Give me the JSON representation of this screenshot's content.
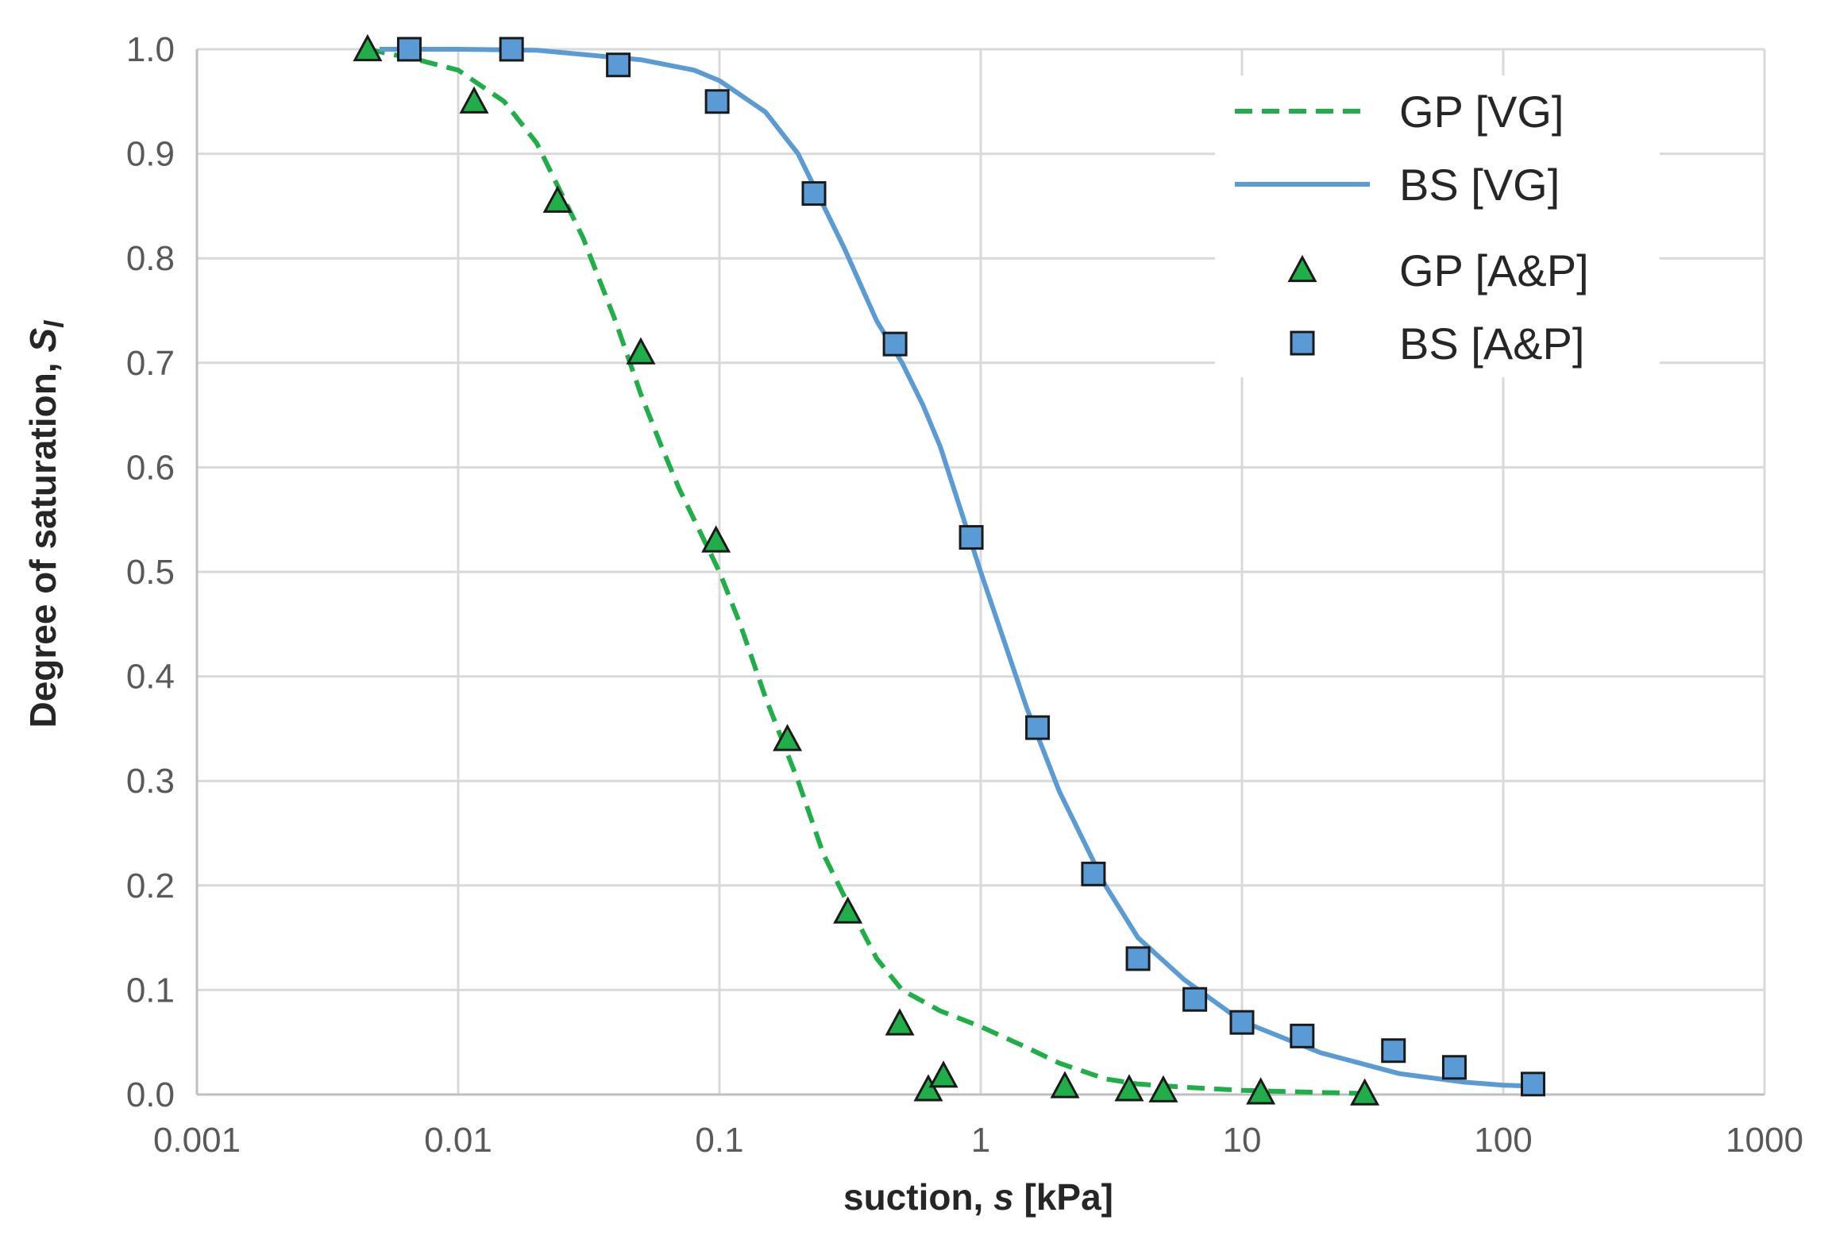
{
  "chart_data": {
    "type": "scatter",
    "xlabel": {
      "text": "suction, ",
      "var": "s",
      "unit": " [kPa]"
    },
    "ylabel": {
      "text": "Degree of saturation, ",
      "var": "S",
      "sub": "l"
    },
    "x_scale": "log",
    "xlim": [
      0.001,
      1000
    ],
    "ylim": [
      0,
      1.0
    ],
    "x_ticks": [
      0.001,
      0.01,
      0.1,
      1,
      10,
      100,
      1000
    ],
    "x_tick_labels": [
      "0.001",
      "0.01",
      "0.1",
      "1",
      "10",
      "100",
      "1000"
    ],
    "y_ticks": [
      0,
      0.1,
      0.2,
      0.3,
      0.4,
      0.5,
      0.6,
      0.7,
      0.8,
      0.9,
      1.0
    ],
    "y_tick_labels": [
      "0.0",
      "0.1",
      "0.2",
      "0.3",
      "0.4",
      "0.5",
      "0.6",
      "0.7",
      "0.8",
      "0.9",
      "1.0"
    ],
    "grid": true,
    "legend_position": "top-right",
    "series": [
      {
        "name": "GP [VG]",
        "kind": "line",
        "style": "dashed",
        "color": "#1fae48",
        "x": [
          0.0045,
          0.007,
          0.01,
          0.015,
          0.02,
          0.03,
          0.04,
          0.05,
          0.06,
          0.07,
          0.08,
          0.1,
          0.12,
          0.15,
          0.2,
          0.25,
          0.3,
          0.4,
          0.5,
          0.7,
          1,
          1.5,
          2,
          3,
          4,
          6,
          10,
          20,
          30
        ],
        "y": [
          1.0,
          0.99,
          0.98,
          0.95,
          0.91,
          0.82,
          0.74,
          0.67,
          0.62,
          0.58,
          0.55,
          0.5,
          0.45,
          0.38,
          0.3,
          0.23,
          0.19,
          0.13,
          0.1,
          0.08,
          0.065,
          0.045,
          0.03,
          0.015,
          0.01,
          0.007,
          0.004,
          0.002,
          0.001
        ]
      },
      {
        "name": "BS [VG]",
        "kind": "line",
        "style": "solid",
        "color": "#5b9bd5",
        "x": [
          0.005,
          0.01,
          0.02,
          0.05,
          0.08,
          0.1,
          0.15,
          0.2,
          0.3,
          0.4,
          0.5,
          0.6,
          0.7,
          1,
          1.5,
          2,
          3,
          4,
          6,
          10,
          20,
          40,
          70,
          100,
          130
        ],
        "y": [
          1.0,
          1.0,
          0.999,
          0.99,
          0.98,
          0.97,
          0.94,
          0.9,
          0.81,
          0.74,
          0.7,
          0.66,
          0.62,
          0.5,
          0.37,
          0.29,
          0.2,
          0.15,
          0.11,
          0.07,
          0.04,
          0.02,
          0.012,
          0.009,
          0.008
        ]
      },
      {
        "name": "GP [A&P]",
        "kind": "scatter",
        "marker": "triangle",
        "color": "#1fae48",
        "x": [
          0.0045,
          0.0115,
          0.024,
          0.05,
          0.097,
          0.182,
          0.31,
          0.49,
          0.63,
          0.72,
          2.1,
          3.7,
          5.0,
          11.8,
          29.5
        ],
        "y": [
          1.0,
          0.95,
          0.855,
          0.71,
          0.53,
          0.34,
          0.175,
          0.068,
          0.005,
          0.018,
          0.008,
          0.005,
          0.004,
          0.002,
          0.001
        ]
      },
      {
        "name": "BS [A&P]",
        "kind": "scatter",
        "marker": "square",
        "color": "#5b9bd5",
        "x": [
          0.0065,
          0.016,
          0.041,
          0.098,
          0.23,
          0.47,
          0.92,
          1.65,
          2.7,
          4.0,
          6.6,
          10.0,
          17.0,
          38.0,
          65.0,
          130.0
        ],
        "y": [
          1.0,
          1.0,
          0.985,
          0.95,
          0.862,
          0.718,
          0.533,
          0.351,
          0.211,
          0.13,
          0.091,
          0.069,
          0.056,
          0.042,
          0.026,
          0.01
        ]
      }
    ]
  }
}
